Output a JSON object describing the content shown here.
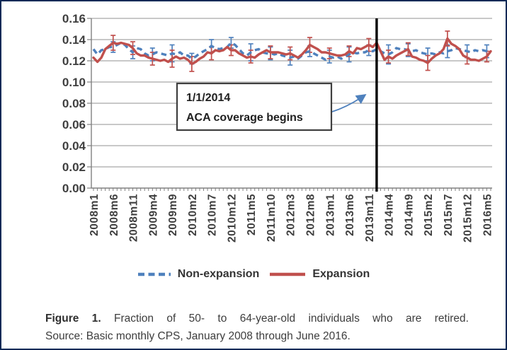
{
  "colors": {
    "frame_border": "#0d2a57",
    "non_expansion_blue": "#4F81BD",
    "expansion_red": "#C0504D",
    "gridline": "#a8a8a8",
    "axis": "#808080",
    "axis_text": "#3f3f3f",
    "event_line": "#000000",
    "annotation_border": "#3f3f3f"
  },
  "legend": {
    "items": [
      {
        "label": "Non-expansion",
        "color": "#4F81BD",
        "dashed": true
      },
      {
        "label": "Expansion",
        "color": "#C0504D",
        "dashed": false
      }
    ]
  },
  "caption": {
    "figure_label": "Figure 1.",
    "text": "Fraction of 50- to 64-year-old individuals who are retired.",
    "source": "Source: Basic monthly CPS, January 2008 through June 2016."
  },
  "chart_data": {
    "type": "line",
    "title": "",
    "xlabel": "",
    "ylabel": "",
    "ylim": [
      0,
      0.16
    ],
    "y_tick_values": [
      0,
      0.02,
      0.04,
      0.06,
      0.08,
      0.1,
      0.12,
      0.14,
      0.16
    ],
    "y_tick_labels": [
      "0.00",
      "0.02",
      "0.04",
      "0.06",
      "0.08",
      "0.10",
      "0.12",
      "0.14",
      "0.16"
    ],
    "n_points": 102,
    "x_start": "2008m1",
    "x_tick_step": 5,
    "x_tick_labels": [
      "2008m1",
      "2008m6",
      "2008m11",
      "2009m4",
      "2009m9",
      "2010m2",
      "2010m7",
      "2010m12",
      "2011m5",
      "2011m10",
      "2012m3",
      "2012m8",
      "2013m1",
      "2013m6",
      "2013m11",
      "2014m4",
      "2014m9",
      "2015m2",
      "2015m7",
      "2015m12",
      "2016m5"
    ],
    "grid": true,
    "legend_position": "bottom",
    "series": [
      {
        "name": "Non-expansion",
        "style": "dashed",
        "color": "#4F81BD",
        "values": [
          0.131,
          0.126,
          0.13,
          0.131,
          0.133,
          0.133,
          0.135,
          0.137,
          0.135,
          0.131,
          0.128,
          0.132,
          0.131,
          0.127,
          0.125,
          0.126,
          0.128,
          0.127,
          0.126,
          0.125,
          0.127,
          0.126,
          0.128,
          0.125,
          0.125,
          0.122,
          0.124,
          0.127,
          0.129,
          0.131,
          0.134,
          0.132,
          0.131,
          0.132,
          0.133,
          0.137,
          0.135,
          0.131,
          0.127,
          0.125,
          0.128,
          0.13,
          0.131,
          0.128,
          0.127,
          0.127,
          0.126,
          0.127,
          0.125,
          0.124,
          0.123,
          0.124,
          0.122,
          0.125,
          0.128,
          0.129,
          0.127,
          0.125,
          0.123,
          0.121,
          0.124,
          0.123,
          0.124,
          0.122,
          0.124,
          0.126,
          0.128,
          0.127,
          0.128,
          0.128,
          0.13,
          0.129,
          0.131,
          0.129,
          0.127,
          0.126,
          0.128,
          0.132,
          0.131,
          0.131,
          0.13,
          0.129,
          0.13,
          0.128,
          0.127,
          0.126,
          0.127,
          0.126,
          0.128,
          0.127,
          0.129,
          0.13,
          0.132,
          0.131,
          0.13,
          0.129,
          0.128,
          0.13,
          0.129,
          0.13,
          0.129,
          0.127
        ]
      },
      {
        "name": "Expansion",
        "style": "solid",
        "color": "#C0504D",
        "values": [
          0.123,
          0.119,
          0.123,
          0.131,
          0.134,
          0.137,
          0.136,
          0.137,
          0.136,
          0.135,
          0.132,
          0.127,
          0.125,
          0.125,
          0.123,
          0.122,
          0.121,
          0.12,
          0.121,
          0.119,
          0.122,
          0.124,
          0.122,
          0.123,
          0.121,
          0.117,
          0.119,
          0.122,
          0.124,
          0.128,
          0.127,
          0.13,
          0.129,
          0.13,
          0.133,
          0.13,
          0.13,
          0.127,
          0.125,
          0.123,
          0.124,
          0.123,
          0.126,
          0.128,
          0.13,
          0.128,
          0.128,
          0.128,
          0.127,
          0.126,
          0.127,
          0.125,
          0.123,
          0.126,
          0.13,
          0.135,
          0.133,
          0.131,
          0.128,
          0.128,
          0.127,
          0.126,
          0.125,
          0.125,
          0.126,
          0.129,
          0.127,
          0.132,
          0.131,
          0.133,
          0.135,
          0.133,
          0.137,
          0.129,
          0.121,
          0.124,
          0.122,
          0.125,
          0.127,
          0.129,
          0.131,
          0.124,
          0.123,
          0.121,
          0.12,
          0.118,
          0.122,
          0.125,
          0.127,
          0.131,
          0.141,
          0.136,
          0.134,
          0.131,
          0.125,
          0.123,
          0.121,
          0.121,
          0.12,
          0.122,
          0.124,
          0.129
        ]
      }
    ],
    "error_bars": {
      "indices": [
        5,
        10,
        15,
        20,
        25,
        30,
        35,
        40,
        45,
        50,
        55,
        60,
        65,
        70,
        75,
        80,
        85,
        90,
        95,
        100
      ],
      "non_expansion_half_widths": [
        0.005,
        0.006,
        0.006,
        0.008,
        0.005,
        0.006,
        0.005,
        0.008,
        0.006,
        0.007,
        0.005,
        0.006,
        0.007,
        0.005,
        0.009,
        0.006,
        0.006,
        0.006,
        0.006,
        0.006
      ],
      "expansion_half_widths": [
        0.007,
        0.006,
        0.006,
        0.008,
        0.007,
        0.006,
        0.005,
        0.006,
        0.006,
        0.006,
        0.007,
        0.005,
        0.005,
        0.006,
        0.006,
        0.006,
        0.007,
        0.007,
        0.006,
        0.005
      ]
    },
    "event_line": {
      "x_index": 72,
      "date": "1/1/2014"
    },
    "annotation": {
      "line1": "1/1/2014",
      "line2": "ACA coverage begins"
    }
  }
}
